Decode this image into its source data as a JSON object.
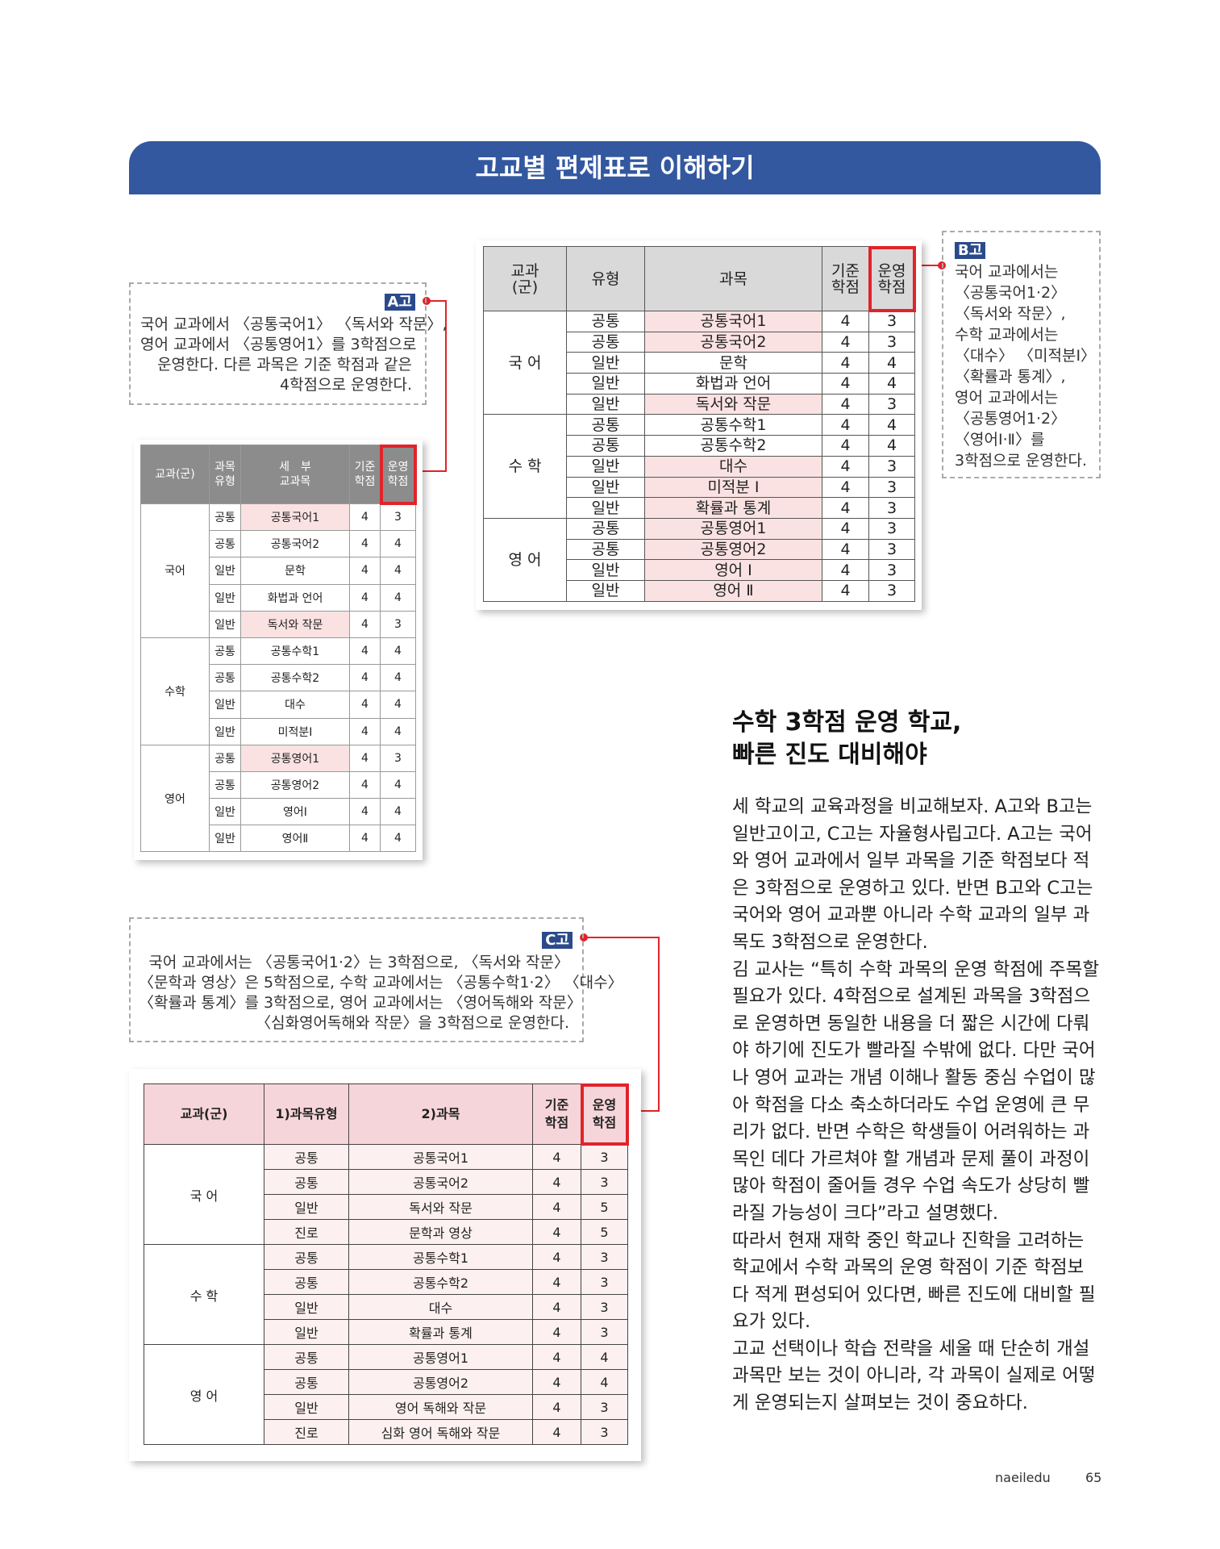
{
  "header": {
    "title": "고교별 편제표로 이해하기"
  },
  "notes": [
    {
      "tag": "A고",
      "lines": [
        "국어 교과에서 〈공통국어1〉 〈독서와 작문〉,",
        "영어 교과에서 〈공통영어1〉를 3학점으로",
        "운영한다. 다른 과목은 기준 학점과 같은",
        "4학점으로 운영한다."
      ]
    },
    {
      "tag": "B고",
      "lines": [
        "국어 교과에서는",
        "〈공통국어1·2〉",
        "〈독서와 작문〉,",
        "수학 교과에서는",
        "〈대수〉 〈미적분Ⅰ〉",
        "〈확률과 통계〉,",
        "영어 교과에서는",
        "〈공통영어1·2〉",
        "〈영어Ⅰ·Ⅱ〉를",
        "3학점으로 운영한다."
      ]
    },
    {
      "tag": "C고",
      "lines": [
        "국어 교과에서는 〈공통국어1·2〉는 3학점으로, 〈독서와 작문〉",
        "〈문학과 영상〉은 5학점으로, 수학 교과에서는 〈공통수학1·2〉 〈대수〉",
        "〈확률과 통계〉를 3학점으로, 영어 교과에서는 〈영어독해와 작문〉",
        "〈심화영어독해와 작문〉을 3학점으로 운영한다."
      ]
    }
  ],
  "tables": [
    {
      "headers": [
        "교과(군)",
        "과목\n유형",
        "세　부\n교과목",
        "기준\n학점",
        "운영\n학점"
      ],
      "groups": [
        {
          "name": "국어",
          "rows": [
            [
              "공통",
              "공통국어1",
              4,
              3
            ],
            [
              "공통",
              "공통국어2",
              4,
              4
            ],
            [
              "일반",
              "문학",
              4,
              4
            ],
            [
              "일반",
              "화법과 언어",
              4,
              4
            ],
            [
              "일반",
              "독서와 작문",
              4,
              3
            ]
          ]
        },
        {
          "name": "수학",
          "rows": [
            [
              "공통",
              "공통수학1",
              4,
              4
            ],
            [
              "공통",
              "공통수학2",
              4,
              4
            ],
            [
              "일반",
              "대수",
              4,
              4
            ],
            [
              "일반",
              "미적분Ⅰ",
              4,
              4
            ]
          ]
        },
        {
          "name": "영어",
          "rows": [
            [
              "공통",
              "공통영어1",
              4,
              3
            ],
            [
              "공통",
              "공통영어2",
              4,
              4
            ],
            [
              "일반",
              "영어Ⅰ",
              4,
              4
            ],
            [
              "일반",
              "영어Ⅱ",
              4,
              4
            ]
          ]
        }
      ]
    },
    {
      "headers": [
        "교과\n(군)",
        "유형",
        "과목",
        "기준\n학점",
        "운영\n학점"
      ],
      "groups": [
        {
          "name": "국 어",
          "rows": [
            [
              "공통",
              "공통국어1",
              4,
              3
            ],
            [
              "공통",
              "공통국어2",
              4,
              3
            ],
            [
              "일반",
              "문학",
              4,
              4
            ],
            [
              "일반",
              "화법과 언어",
              4,
              4
            ],
            [
              "일반",
              "독서와 작문",
              4,
              3
            ]
          ]
        },
        {
          "name": "수 학",
          "rows": [
            [
              "공통",
              "공통수학1",
              4,
              4
            ],
            [
              "공통",
              "공통수학2",
              4,
              4
            ],
            [
              "일반",
              "대수",
              4,
              3
            ],
            [
              "일반",
              "미적분 Ⅰ",
              4,
              3
            ],
            [
              "일반",
              "확률과 통계",
              4,
              3
            ]
          ]
        },
        {
          "name": "영 어",
          "rows": [
            [
              "공통",
              "공통영어1",
              4,
              3
            ],
            [
              "공통",
              "공통영어2",
              4,
              3
            ],
            [
              "일반",
              "영어 Ⅰ",
              4,
              3
            ],
            [
              "일반",
              "영어 Ⅱ",
              4,
              3
            ]
          ]
        }
      ]
    },
    {
      "headers": [
        "교과(군)",
        "1)과목유형",
        "2)과목",
        "기준\n학점",
        "운영\n학점"
      ],
      "groups": [
        {
          "name": "국 어",
          "rows": [
            [
              "공통",
              "공통국어1",
              4,
              3
            ],
            [
              "공통",
              "공통국어2",
              4,
              3
            ],
            [
              "일반",
              "독서와 작문",
              4,
              5
            ],
            [
              "진로",
              "문학과 영상",
              4,
              5
            ]
          ]
        },
        {
          "name": "수 학",
          "rows": [
            [
              "공통",
              "공통수학1",
              4,
              3
            ],
            [
              "공통",
              "공통수학2",
              4,
              3
            ],
            [
              "일반",
              "대수",
              4,
              3
            ],
            [
              "일반",
              "확률과 통계",
              4,
              3
            ]
          ]
        },
        {
          "name": "영 어",
          "rows": [
            [
              "공통",
              "공통영어1",
              4,
              4
            ],
            [
              "공통",
              "공통영어2",
              4,
              4
            ],
            [
              "일반",
              "영어 독해와 작문",
              4,
              3
            ],
            [
              "진로",
              "심화 영어 독해와 작문",
              4,
              3
            ]
          ]
        }
      ]
    }
  ],
  "article": {
    "heading": [
      "수학 3학점 운영 학교,",
      "빠른 진도 대비해야"
    ],
    "lines": [
      "세 학교의 교육과정을 비교해보자. A고와 B고는",
      "일반고이고, C고는 자율형사립고다. A고는 국어",
      "와 영어 교과에서 일부 과목을 기준 학점보다 적",
      "은 3학점으로 운영하고 있다. 반면 B고와 C고는",
      "국어와 영어 교과뿐 아니라 수학 교과의 일부 과",
      "목도 3학점으로 운영한다.",
      "김 교사는 “특히 수학 과목의 운영 학점에 주목할",
      "필요가 있다. 4학점으로 설계된 과목을 3학점으",
      "로 운영하면 동일한 내용을 더 짧은 시간에 다뤄",
      "야 하기에 진도가 빨라질 수밖에 없다. 다만 국어",
      "나 영어 교과는 개념 이해나 활동 중심 수업이 많",
      "아 학점을 다소 축소하더라도 수업 운영에 큰 무",
      "리가 없다. 반면 수학은 학생들이 어려워하는 과",
      "목인 데다 가르쳐야 할 개념과 문제 풀이 과정이",
      "많아 학점이 줄어들 경우 수업 속도가 상당히 빨",
      "라질 가능성이 크다”라고 설명했다.",
      "따라서 현재 재학 중인 학교나 진학을 고려하는",
      "학교에서 수학 과목의 운영 학점이 기준 학점보",
      "다 적게 편성되어 있다면, 빠른 진도에 대비할 필",
      "요가 있다.",
      "고교 선택이나 학습 전략을 세울 때 단순히 개설",
      "과목만 보는 것이 아니라, 각 과목이 실제로 어떻",
      "게 운영되는지 살펴보는 것이 중요하다."
    ]
  },
  "footer": {
    "brand": "naeiledu",
    "page": "65"
  }
}
